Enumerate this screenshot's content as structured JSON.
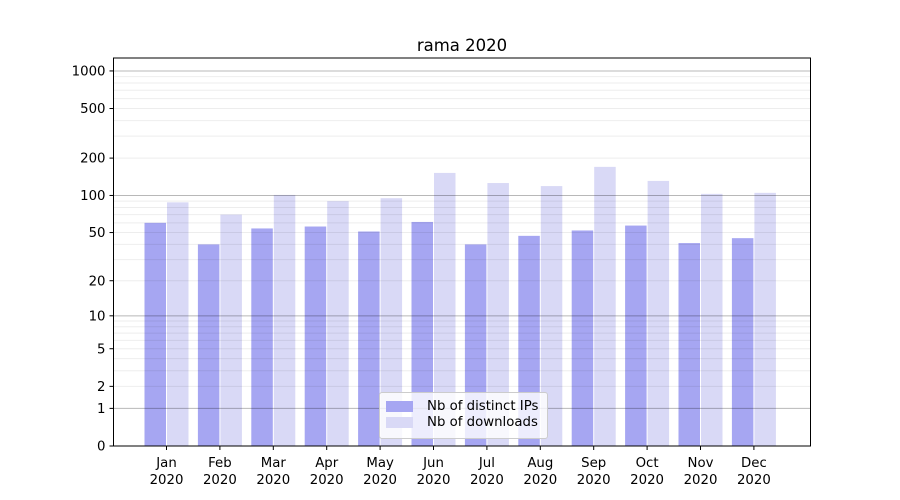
{
  "figure": {
    "background": "#ffffff"
  },
  "chart_data": {
    "type": "bar",
    "title": "rama 2020",
    "categories": [
      "Jan",
      "Feb",
      "Mar",
      "Apr",
      "May",
      "Jun",
      "Jul",
      "Aug",
      "Sep",
      "Oct",
      "Nov",
      "Dec"
    ],
    "category_year": "2020",
    "series": [
      {
        "name": "Nb of distinct IPs",
        "color": "#a6a6f2",
        "values": [
          60,
          40,
          54,
          56,
          51,
          61,
          40,
          47,
          52,
          57,
          41,
          45
        ]
      },
      {
        "name": "Nb of downloads",
        "color": "#d9d9f6",
        "values": [
          88,
          70,
          101,
          90,
          95,
          152,
          126,
          119,
          170,
          131,
          103,
          105
        ]
      }
    ],
    "xlabel": "",
    "ylabel": "",
    "yscale": "log1p",
    "yticks": [
      0,
      1,
      2,
      5,
      10,
      20,
      50,
      100,
      200,
      500,
      1000
    ],
    "ylim": [
      0,
      1270
    ],
    "grid": true,
    "legend_position": "lower center",
    "colors": {
      "major_grid": "rgba(0,0,0,0.28)",
      "minor_grid": "rgba(0,0,0,0.07)",
      "spine": "#000000",
      "tick_label": "#000000"
    }
  }
}
